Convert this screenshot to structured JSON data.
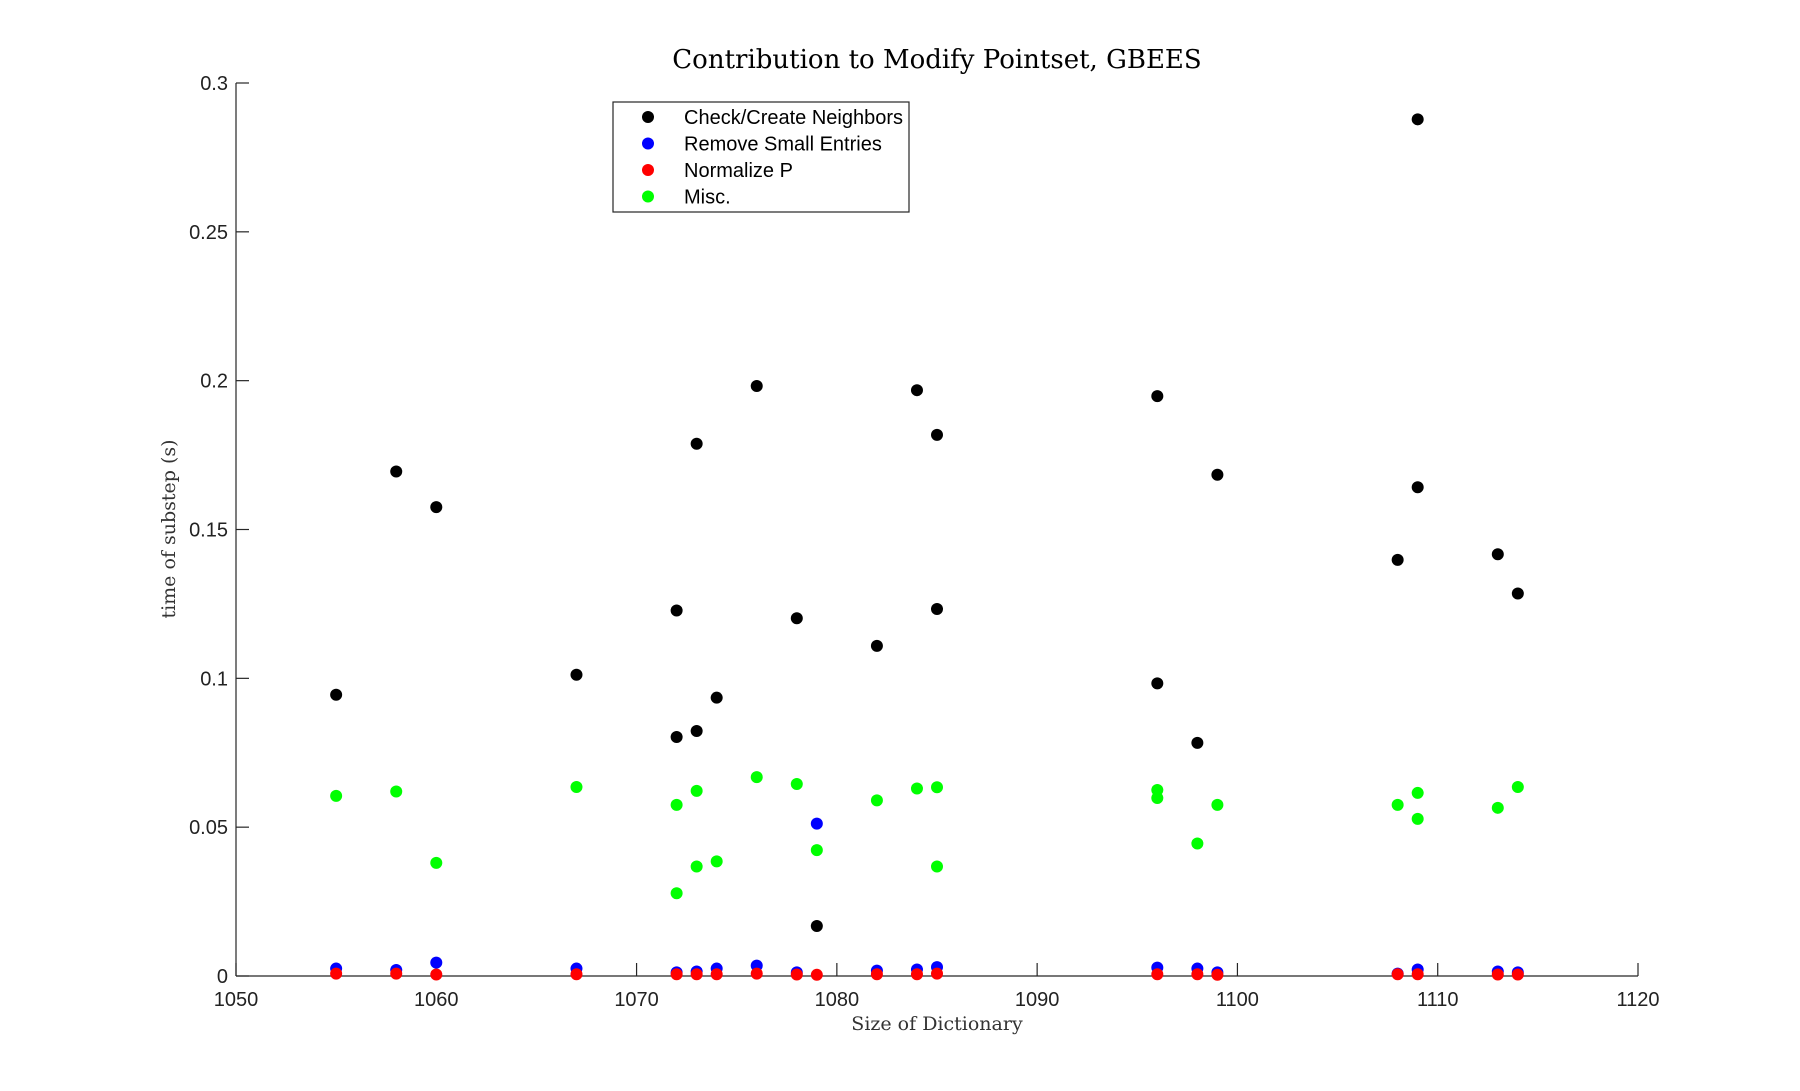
{
  "chart_data": {
    "type": "scatter",
    "title": "Contribution to Modify Pointset, GBEES",
    "xlabel": "Size of Dictionary",
    "ylabel": "time of substep (s)",
    "xlim": [
      1050,
      1120
    ],
    "ylim": [
      0,
      0.3
    ],
    "xticks": [
      1050,
      1060,
      1070,
      1080,
      1090,
      1100,
      1110,
      1120
    ],
    "xtick_labels": [
      "1050",
      "1060",
      "1070",
      "1080",
      "1090",
      "1100",
      "1110",
      "1120"
    ],
    "yticks": [
      0,
      0.05,
      0.1,
      0.15,
      0.2,
      0.25,
      0.3
    ],
    "ytick_labels": [
      "0",
      "0.05",
      "0.1",
      "0.15",
      "0.2",
      "0.25",
      "0.3"
    ],
    "grid": false,
    "legend_position": "top-center",
    "series": [
      {
        "name": "Check/Create Neighbors",
        "color": "#000000",
        "x": [
          1055,
          1058,
          1060,
          1067,
          1072,
          1072,
          1073,
          1073,
          1074,
          1076,
          1078,
          1079,
          1082,
          1084,
          1085,
          1085,
          1096,
          1096,
          1098,
          1099,
          1108,
          1109,
          1109,
          1113,
          1114
        ],
        "y": [
          0.0945,
          0.1695,
          0.1575,
          0.1012,
          0.1228,
          0.0803,
          0.1788,
          0.0823,
          0.0935,
          0.1982,
          0.1202,
          0.0168,
          0.1109,
          0.1968,
          0.1818,
          0.1233,
          0.1948,
          0.0983,
          0.0783,
          0.1684,
          0.1398,
          0.1642,
          0.2878,
          0.1417,
          0.1285
        ]
      },
      {
        "name": "Remove Small Entries",
        "color": "#0000ff",
        "x": [
          1055,
          1058,
          1060,
          1067,
          1072,
          1073,
          1074,
          1076,
          1078,
          1079,
          1082,
          1084,
          1085,
          1096,
          1098,
          1099,
          1108,
          1109,
          1113,
          1114
        ],
        "y": [
          0.0025,
          0.002,
          0.0045,
          0.0025,
          0.0012,
          0.0015,
          0.0025,
          0.0035,
          0.0012,
          0.0512,
          0.0018,
          0.0022,
          0.003,
          0.0028,
          0.0025,
          0.0012,
          0.0008,
          0.0022,
          0.0015,
          0.0012
        ]
      },
      {
        "name": "Normalize P",
        "color": "#ff0000",
        "x": [
          1055,
          1058,
          1060,
          1067,
          1072,
          1073,
          1074,
          1076,
          1078,
          1079,
          1082,
          1084,
          1085,
          1096,
          1098,
          1099,
          1108,
          1109,
          1113,
          1114
        ],
        "y": [
          0.0008,
          0.0008,
          0.0005,
          0.0006,
          0.0006,
          0.0006,
          0.0006,
          0.0008,
          0.0005,
          0.0004,
          0.0006,
          0.0006,
          0.0008,
          0.0006,
          0.0006,
          0.0004,
          0.0006,
          0.0006,
          0.0005,
          0.0005
        ]
      },
      {
        "name": "Misc.",
        "color": "#00ff00",
        "x": [
          1055,
          1058,
          1060,
          1067,
          1072,
          1072,
          1073,
          1073,
          1074,
          1076,
          1078,
          1079,
          1082,
          1084,
          1085,
          1085,
          1096,
          1096,
          1098,
          1099,
          1108,
          1109,
          1109,
          1113,
          1114
        ],
        "y": [
          0.0605,
          0.062,
          0.038,
          0.0635,
          0.0575,
          0.0278,
          0.0622,
          0.0368,
          0.0385,
          0.0668,
          0.0645,
          0.0423,
          0.059,
          0.063,
          0.0634,
          0.0368,
          0.0625,
          0.0598,
          0.0445,
          0.0575,
          0.0575,
          0.0615,
          0.0528,
          0.0565,
          0.0635
        ]
      }
    ]
  }
}
